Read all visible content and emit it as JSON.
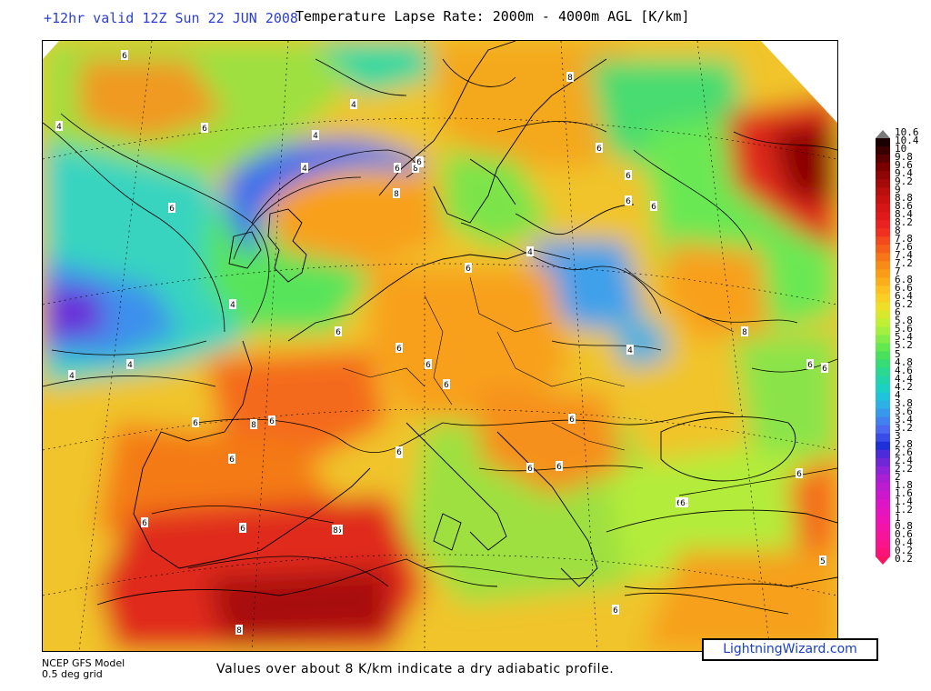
{
  "header": {
    "valid_time": "+12hr valid 12Z Sun 22 JUN 2008",
    "title": "Temperature Lapse Rate: 2000m - 4000m AGL  [K/km]"
  },
  "map": {
    "contour_labels": [
      {
        "text": "6",
        "kind": "white"
      },
      {
        "text": "6",
        "kind": "white"
      },
      {
        "text": "4",
        "kind": "white"
      },
      {
        "text": "6",
        "kind": "white"
      },
      {
        "text": "4",
        "kind": "white"
      },
      {
        "text": "4",
        "kind": "white"
      },
      {
        "text": "6",
        "kind": "white"
      },
      {
        "text": "4",
        "kind": "white"
      },
      {
        "text": "8",
        "kind": "white"
      },
      {
        "text": "4",
        "kind": "white"
      },
      {
        "text": "8",
        "kind": "white"
      },
      {
        "text": "6",
        "kind": "white"
      },
      {
        "text": "6",
        "kind": "white"
      },
      {
        "text": "6",
        "kind": "white"
      },
      {
        "text": "6",
        "kind": "white"
      },
      {
        "text": "8",
        "kind": "white"
      },
      {
        "text": "4",
        "kind": "white"
      },
      {
        "text": "6",
        "kind": "white"
      },
      {
        "text": "6",
        "kind": "white"
      },
      {
        "text": "4",
        "kind": "white"
      },
      {
        "text": "4",
        "kind": "white"
      },
      {
        "text": "4",
        "kind": "white"
      },
      {
        "text": "6",
        "kind": "white"
      },
      {
        "text": "6",
        "kind": "white"
      },
      {
        "text": "4",
        "kind": "white"
      },
      {
        "text": "6",
        "kind": "white"
      },
      {
        "text": "6",
        "kind": "white"
      },
      {
        "text": "6",
        "kind": "white"
      },
      {
        "text": "6",
        "kind": "white"
      },
      {
        "text": "8",
        "kind": "white"
      },
      {
        "text": "6",
        "kind": "white"
      },
      {
        "text": "6",
        "kind": "white"
      },
      {
        "text": "6",
        "kind": "white"
      },
      {
        "text": "5",
        "kind": "white"
      },
      {
        "text": "6",
        "kind": "white"
      },
      {
        "text": "6",
        "kind": "white"
      },
      {
        "text": "8",
        "kind": "white"
      },
      {
        "text": "6",
        "kind": "white"
      },
      {
        "text": "6",
        "kind": "white"
      },
      {
        "text": "6",
        "kind": "white"
      },
      {
        "text": "6",
        "kind": "white"
      },
      {
        "text": "6",
        "kind": "white"
      },
      {
        "text": "6",
        "kind": "white"
      },
      {
        "text": "6",
        "kind": "white"
      },
      {
        "text": "8",
        "kind": "white"
      },
      {
        "text": "6",
        "kind": "white"
      },
      {
        "text": "6",
        "kind": "white"
      },
      {
        "text": "8",
        "kind": "white"
      },
      {
        "text": "5",
        "kind": "white"
      },
      {
        "text": "6",
        "kind": "white"
      }
    ]
  },
  "color_scale": {
    "unit": "K/km",
    "labels": [
      "10.6",
      "10.4",
      "10",
      "9.8",
      "9.6",
      "9.4",
      "9.2",
      "9",
      "8.8",
      "8.6",
      "8.4",
      "8.2",
      "8",
      "7.8",
      "7.6",
      "7.4",
      "7.2",
      "7",
      "6.8",
      "6.6",
      "6.4",
      "6.2",
      "6",
      "5.8",
      "5.6",
      "5.4",
      "5.2",
      "5",
      "4.8",
      "4.6",
      "4.4",
      "4.2",
      "4",
      "3.8",
      "3.6",
      "3.4",
      "3.2",
      "3",
      "2.8",
      "2.6",
      "2.4",
      "2.2",
      "2",
      "1.8",
      "1.6",
      "1.4",
      "1.2",
      "1",
      "0.8",
      "0.6",
      "0.4",
      "0.2",
      "0.2"
    ],
    "colors": [
      "#7a7a7a",
      "#1a0000",
      "#3a0000",
      "#5a0000",
      "#7a0000",
      "#8f0606",
      "#a30a0a",
      "#b80f0f",
      "#c81212",
      "#d41616",
      "#e01a1a",
      "#ea2222",
      "#f03020",
      "#f24a1c",
      "#f4601a",
      "#f67618",
      "#f88a16",
      "#fa9c18",
      "#fbae1c",
      "#fcc020",
      "#f8d024",
      "#eede28",
      "#d8e82c",
      "#bff034",
      "#a4f03e",
      "#84ec48",
      "#62e850",
      "#48e05c",
      "#36dc76",
      "#2ad890",
      "#22d4aa",
      "#1cd0c4",
      "#20c4da",
      "#2cb0e6",
      "#3898ec",
      "#4280f0",
      "#4a68f0",
      "#3a4ce8",
      "#1e30d8",
      "#4c2cd8",
      "#6e28d8",
      "#8e24d6",
      "#a820d2",
      "#bc1cd0",
      "#cc18cc",
      "#da16c6",
      "#e414be",
      "#ec14b4",
      "#f214a8",
      "#f6149a",
      "#f8148a",
      "#fa1478",
      "#fa1466"
    ]
  },
  "footer": {
    "model": "NCEP GFS Model",
    "grid": "0.5 deg grid",
    "note": "Values over about 8 K/km indicate a dry adiabatic profile.",
    "brand": "LightningWizard.com"
  }
}
